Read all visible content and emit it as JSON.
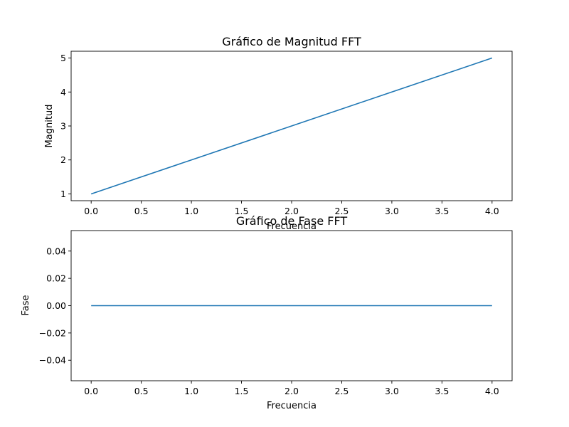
{
  "chart_data": [
    {
      "type": "line",
      "title": "Gráfico de Magnitud FFT",
      "xlabel": "Frecuencia",
      "ylabel": "Magnitud",
      "xlim": [
        -0.2,
        4.2
      ],
      "ylim": [
        0.8,
        5.2
      ],
      "xticks": [
        "0.0",
        "0.5",
        "1.0",
        "1.5",
        "2.0",
        "2.5",
        "3.0",
        "3.5",
        "4.0"
      ],
      "yticks": [
        "1",
        "2",
        "3",
        "4",
        "5"
      ],
      "grid": false,
      "color": "#1f77b4",
      "series": [
        {
          "x": [
            0,
            1,
            2,
            3,
            4
          ],
          "values": [
            1,
            2,
            3,
            4,
            5
          ]
        }
      ]
    },
    {
      "type": "line",
      "title": "Gráfico de Fase FFT",
      "xlabel": "Frecuencia",
      "ylabel": "Fase",
      "xlim": [
        -0.2,
        4.2
      ],
      "ylim": [
        -0.055,
        0.055
      ],
      "xticks": [
        "0.0",
        "0.5",
        "1.0",
        "1.5",
        "2.0",
        "2.5",
        "3.0",
        "3.5",
        "4.0"
      ],
      "yticks": [
        "−0.04",
        "−0.02",
        "0.00",
        "0.02",
        "0.04"
      ],
      "grid": false,
      "color": "#1f77b4",
      "series": [
        {
          "x": [
            0,
            1,
            2,
            3,
            4
          ],
          "values": [
            0,
            0,
            0,
            0,
            0
          ]
        }
      ]
    }
  ]
}
